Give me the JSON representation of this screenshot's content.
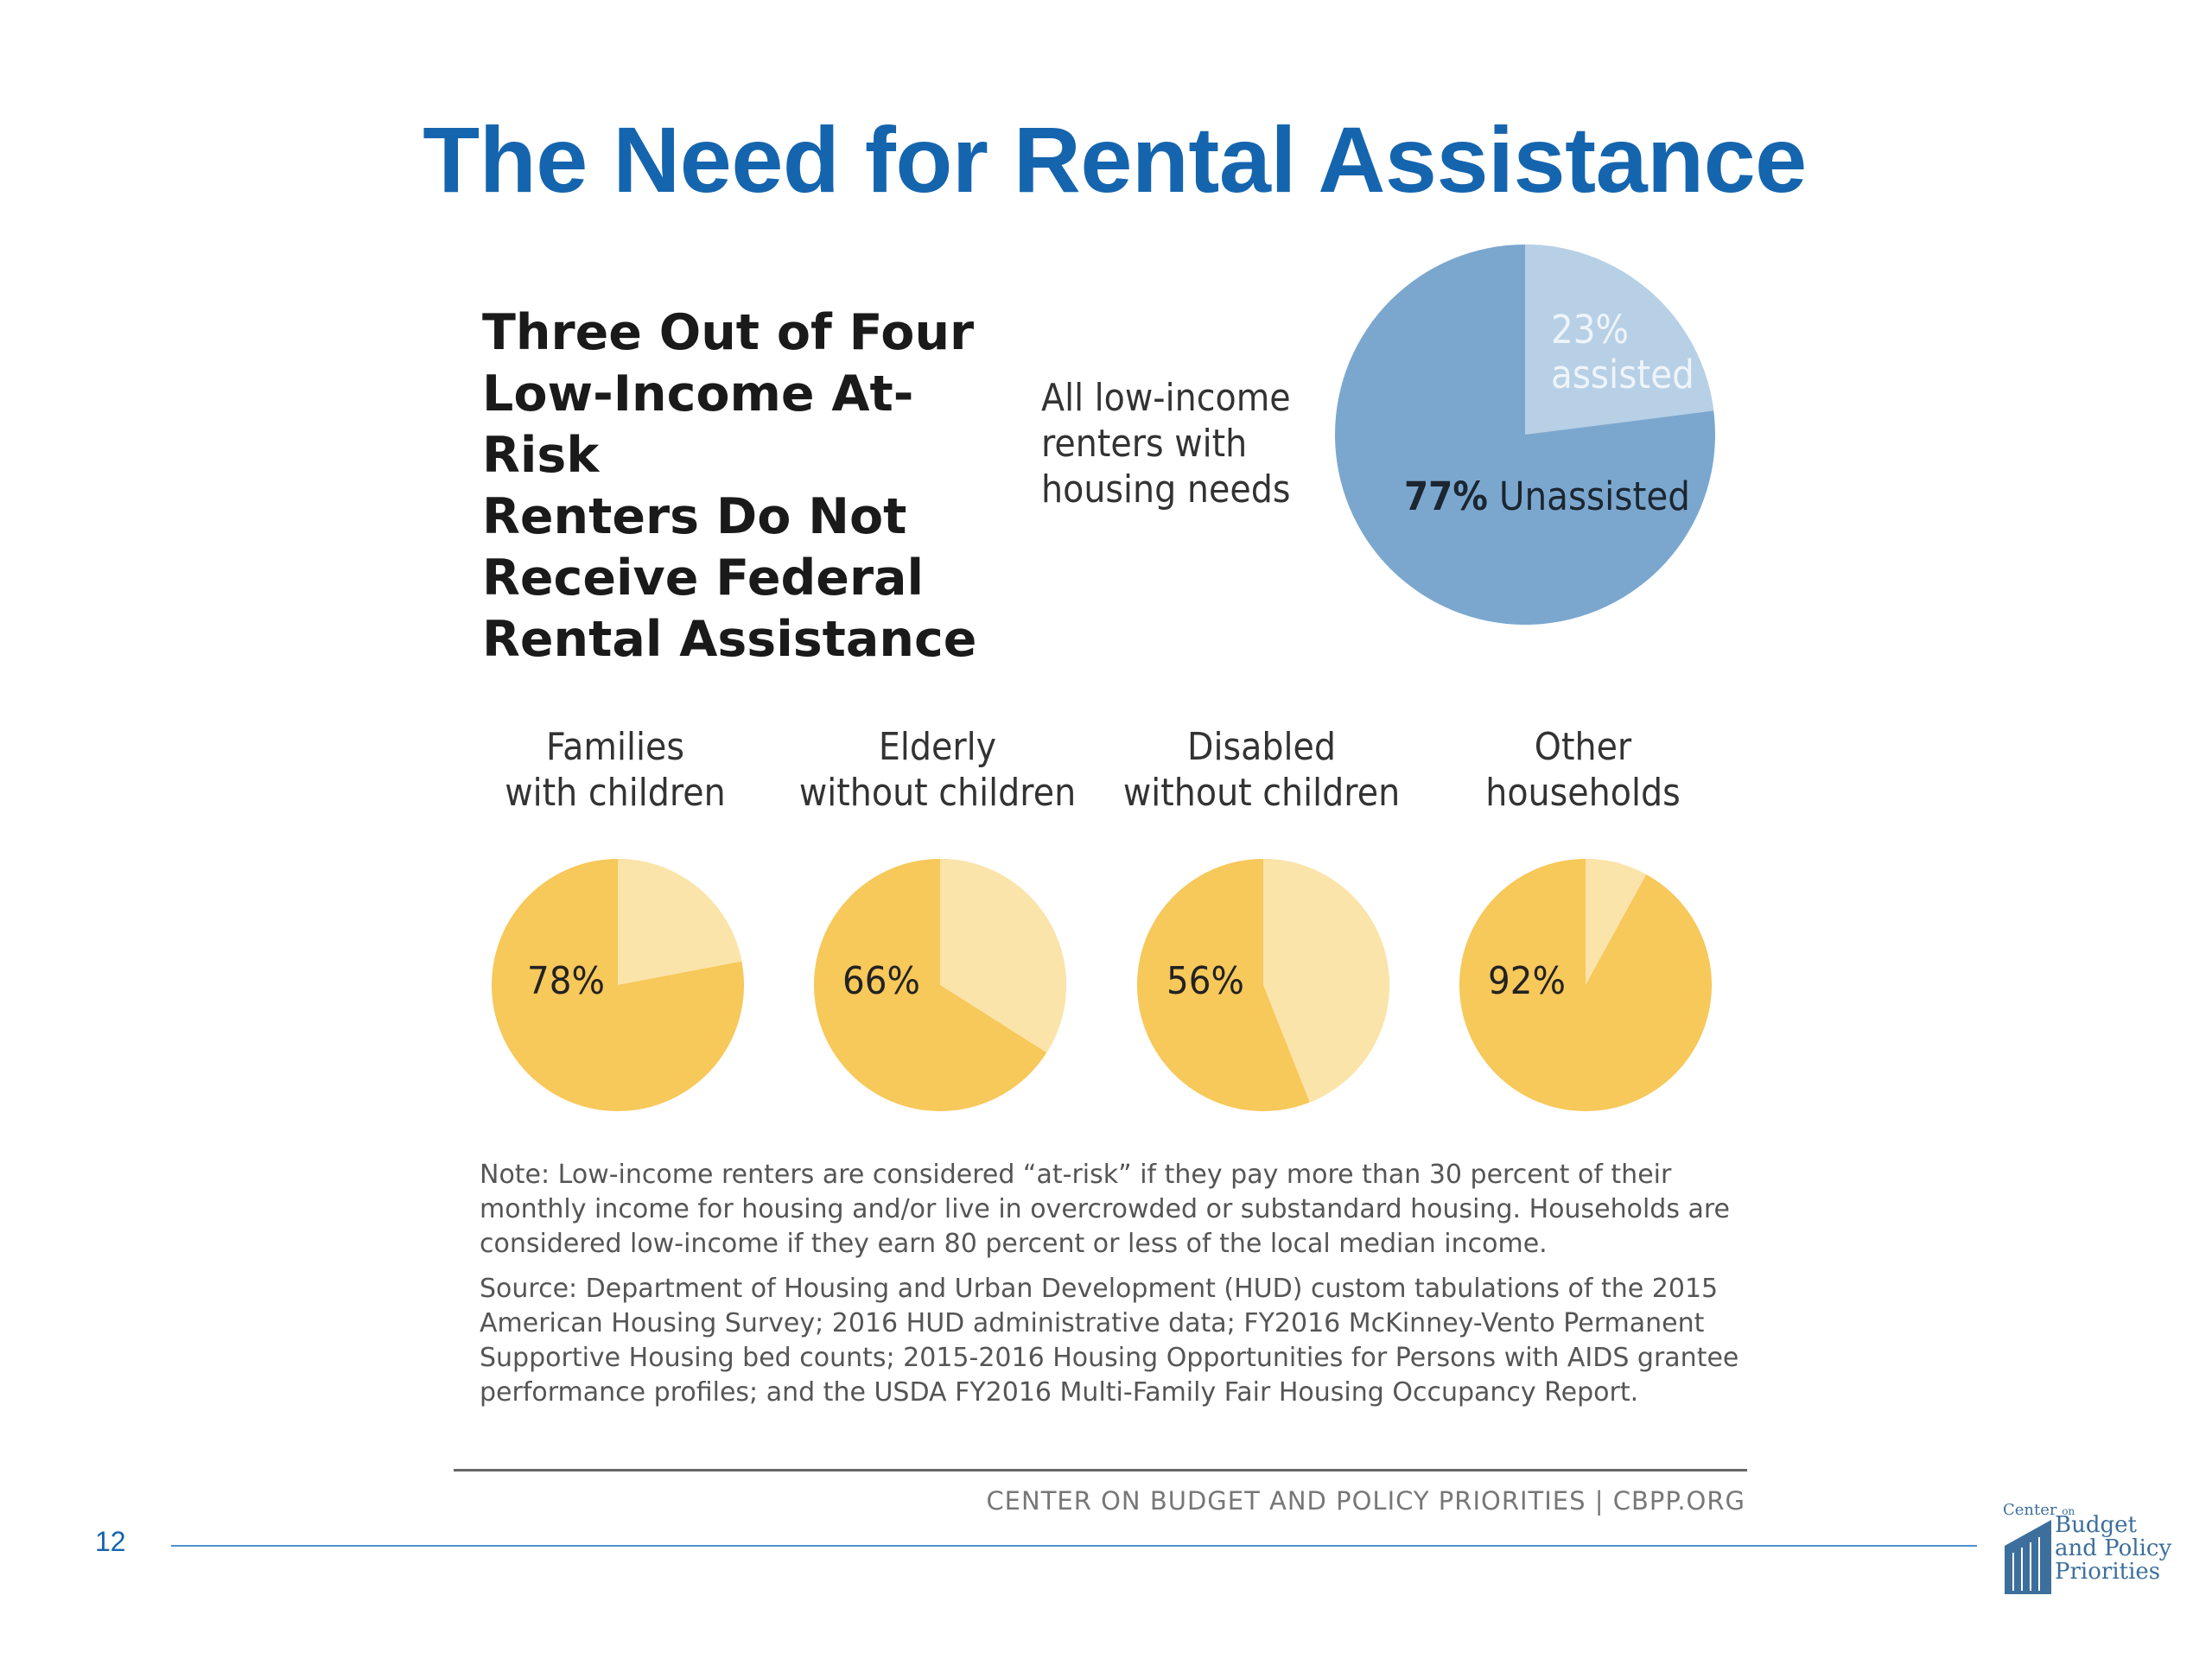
{
  "slide": {
    "title": "The Need for Rental Assistance",
    "page_number": "12"
  },
  "headline_lines": [
    "Three Out of Four",
    "Low-Income At-Risk",
    "Renters Do Not",
    "Receive Federal",
    "Rental Assistance"
  ],
  "total": {
    "label_lines": [
      "All low-income",
      "renters with",
      "housing needs"
    ],
    "assisted_pct": "23%",
    "assisted_word": "assisted",
    "unassisted_pct": "77%",
    "unassisted_word": "Unassisted"
  },
  "categories": [
    {
      "line1": "Families",
      "line2": "with children",
      "pct_label": "78%"
    },
    {
      "line1": "Elderly",
      "line2": "without children",
      "pct_label": "66%"
    },
    {
      "line1": "Disabled",
      "line2": "without children",
      "pct_label": "56%"
    },
    {
      "line1": "Other",
      "line2": "households",
      "pct_label": "92%"
    }
  ],
  "notes": {
    "note": "Note: Low-income renters are considered “at-risk” if they pay more than 30 percent of their monthly income for housing and/or live in overcrowded or substandard housing. Households are considered low-income if they earn 80 percent or less of the local median income.",
    "source": "Source: Department of Housing and Urban Development (HUD) custom tabulations of the 2015 American Housing Survey; 2016 HUD administrative data; FY2016 McKinney-Vento Permanent Supportive Housing bed counts; 2015-2016 Housing Opportunities for Persons with AIDS grantee performance profiles; and the USDA FY2016 Multi-Family Fair Housing Occupancy Report.",
    "footer_org": "CENTER ON BUDGET AND POLICY PRIORITIES | CBPP.ORG"
  },
  "logo": {
    "line_center": "Center",
    "line_on": "on",
    "line_budget": "Budget",
    "line_policy": "and Policy",
    "line_priorities": "Priorities"
  },
  "colors": {
    "title_blue": "#1565ae",
    "main_unassisted": "#7ba7cf",
    "main_assisted": "#b7d0e6",
    "small_unassisted": "#f7c85a",
    "small_assisted": "#fbe4aa"
  },
  "chart_data": [
    {
      "type": "pie",
      "categories": [
        "assisted",
        "Unassisted"
      ],
      "values": [
        23,
        77
      ]
    },
    {
      "type": "pie",
      "title": "Families with children",
      "categories": [
        "unassisted",
        "assisted"
      ],
      "values": [
        78,
        22
      ]
    },
    {
      "type": "pie",
      "title": "Elderly without children",
      "categories": [
        "unassisted",
        "assisted"
      ],
      "values": [
        66,
        34
      ]
    },
    {
      "type": "pie",
      "title": "Disabled without children",
      "categories": [
        "unassisted",
        "assisted"
      ],
      "values": [
        56,
        44
      ]
    },
    {
      "type": "pie",
      "title": "Other households",
      "categories": [
        "unassisted",
        "assisted"
      ],
      "values": [
        92,
        8
      ]
    }
  ]
}
